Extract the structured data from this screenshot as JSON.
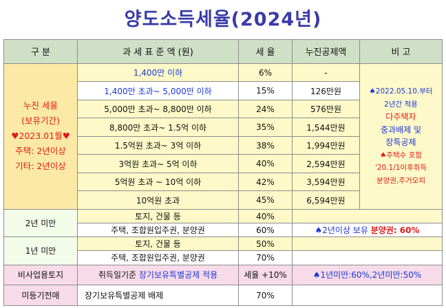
{
  "title": "양도소득세율(2024년)",
  "headers": [
    "구    분",
    "과 세 표 준 액 (원)",
    "세  율",
    "누진공제액",
    "비  고"
  ],
  "progressive": {
    "label_lines": [
      "누진 세율",
      "(보유기간)",
      "♥2023.01월♥",
      "주택: 2년이상",
      "기타: 2년이상"
    ],
    "rows": [
      {
        "base": "1,400만 이하",
        "rate": "6%",
        "deduction": "-"
      },
      {
        "base": "1,400만 초과~ 5,000만 이하",
        "rate": "15%",
        "deduction": "126만원"
      },
      {
        "base": "5,000만 초과~ 8,800만 이하",
        "rate": "24%",
        "deduction": "576만원"
      },
      {
        "base": "8,800만 초과~ 1.5억 이하",
        "rate": "35%",
        "deduction": "1,544만원"
      },
      {
        "base": "1.5억원 초과~ 3억 이하",
        "rate": "38%",
        "deduction": "1,994만원"
      },
      {
        "base": "3억원 초과~ 5억 이하",
        "rate": "40%",
        "deduction": "2,594만원"
      },
      {
        "base": "5억원 초과 ~ 10억 이하",
        "rate": "42%",
        "deduction": "3,594만원"
      },
      {
        "base": "10억원 초과",
        "rate": "45%",
        "deduction": "6,594만원"
      }
    ],
    "note_lines": [
      "♠2022.05.10.부터",
      "2년간 적용",
      "다주택자",
      "중과배제 및",
      "장특공제",
      "♠주택수 포함",
      "'20.1/1이후취득",
      "분양권,주거오피"
    ]
  },
  "under2": {
    "label": "2년 미만",
    "rows": [
      {
        "base": "토지, 건물 등",
        "rate": "40%"
      },
      {
        "base": "주택, 조합원입주권, 분양권",
        "rate": "60%"
      }
    ],
    "note_prefix": "♠2년이상 보유 ",
    "note_red": "분양권: 60%"
  },
  "under1": {
    "label": "1년 미만",
    "rows": [
      {
        "base": "토지, 건물 등",
        "rate": "50%"
      },
      {
        "base": "주택, 조합원입주권, 분양권",
        "rate": "70%"
      }
    ]
  },
  "nonbusiness": {
    "label": "비사업용토지",
    "base_prefix": "취득일기준 ",
    "base_blue": "장기보유특별공제 적용",
    "rate": "세율 +10%",
    "note": "♠1년미만:60%,2년미만:50%"
  },
  "unregistered": {
    "label": "미등기전매",
    "base": "장기보유특별공제 배제",
    "rate": "70%"
  }
}
